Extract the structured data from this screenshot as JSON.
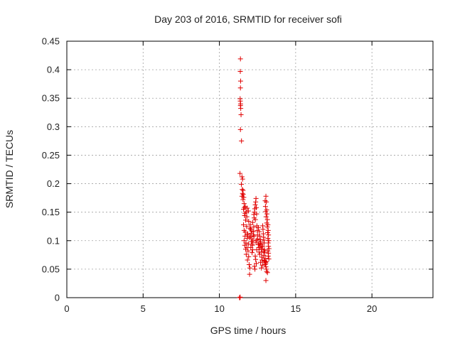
{
  "chart_data": {
    "type": "scatter",
    "title": "Day 203 of 2016, SRMTID for receiver sofi",
    "xlabel": "GPS time / hours",
    "ylabel": "SRMTID / TECUs",
    "xlim": [
      0,
      24
    ],
    "ylim": [
      0,
      0.45
    ],
    "xticks": [
      0,
      5,
      10,
      15,
      20
    ],
    "xtick_labels": [
      "0",
      "5",
      "10",
      "15",
      "20"
    ],
    "yticks": [
      0,
      0.05,
      0.1,
      0.15,
      0.2,
      0.25,
      0.3,
      0.35,
      0.4,
      0.45
    ],
    "ytick_labels": [
      "0",
      "0.05",
      "0.1",
      "0.15",
      "0.2",
      "0.25",
      "0.3",
      "0.35",
      "0.4",
      "0.45"
    ],
    "grid": true,
    "marker": "+",
    "color": "#e00000",
    "series": [
      {
        "name": "SRMTID",
        "points": [
          [
            11.32,
            0.0
          ],
          [
            11.33,
            0.0
          ],
          [
            11.34,
            0.0
          ],
          [
            11.35,
            0.0
          ],
          [
            11.36,
            0.001
          ],
          [
            11.38,
            0.419
          ],
          [
            11.37,
            0.397
          ],
          [
            11.39,
            0.38
          ],
          [
            11.38,
            0.368
          ],
          [
            11.36,
            0.349
          ],
          [
            11.37,
            0.345
          ],
          [
            11.39,
            0.34
          ],
          [
            11.38,
            0.337
          ],
          [
            11.4,
            0.332
          ],
          [
            11.42,
            0.321
          ],
          [
            11.38,
            0.295
          ],
          [
            11.45,
            0.275
          ],
          [
            11.35,
            0.218
          ],
          [
            11.48,
            0.212
          ],
          [
            11.52,
            0.208
          ],
          [
            11.44,
            0.199
          ],
          [
            11.55,
            0.188
          ],
          [
            11.52,
            0.183
          ],
          [
            11.48,
            0.178
          ],
          [
            11.6,
            0.176
          ],
          [
            11.55,
            0.172
          ],
          [
            11.62,
            0.165
          ],
          [
            11.7,
            0.16
          ],
          [
            11.58,
            0.155
          ],
          [
            11.82,
            0.157
          ],
          [
            11.75,
            0.15
          ],
          [
            11.68,
            0.148
          ],
          [
            11.9,
            0.152
          ],
          [
            11.65,
            0.144
          ],
          [
            11.8,
            0.142
          ],
          [
            11.72,
            0.136
          ],
          [
            11.58,
            0.128
          ],
          [
            11.78,
            0.125
          ],
          [
            11.62,
            0.118
          ],
          [
            11.7,
            0.115
          ],
          [
            11.86,
            0.112
          ],
          [
            11.68,
            0.108
          ],
          [
            11.82,
            0.104
          ],
          [
            11.62,
            0.1
          ],
          [
            11.74,
            0.096
          ],
          [
            11.9,
            0.094
          ],
          [
            11.66,
            0.092
          ],
          [
            11.8,
            0.088
          ],
          [
            11.72,
            0.085
          ],
          [
            11.88,
            0.082
          ],
          [
            11.76,
            0.076
          ],
          [
            11.92,
            0.072
          ],
          [
            11.84,
            0.066
          ],
          [
            11.95,
            0.058
          ],
          [
            12.0,
            0.052
          ],
          [
            11.98,
            0.041
          ],
          [
            12.02,
            0.128
          ],
          [
            12.05,
            0.12
          ],
          [
            12.08,
            0.113
          ],
          [
            12.04,
            0.107
          ],
          [
            12.12,
            0.103
          ],
          [
            12.1,
            0.098
          ],
          [
            12.15,
            0.094
          ],
          [
            12.06,
            0.088
          ],
          [
            12.18,
            0.084
          ],
          [
            12.14,
            0.079
          ],
          [
            12.2,
            0.1
          ],
          [
            12.22,
            0.11
          ],
          [
            12.24,
            0.116
          ],
          [
            12.25,
            0.124
          ],
          [
            12.18,
            0.132
          ],
          [
            12.28,
            0.14
          ],
          [
            12.26,
            0.146
          ],
          [
            12.3,
            0.15
          ],
          [
            12.32,
            0.156
          ],
          [
            12.35,
            0.163
          ],
          [
            12.38,
            0.168
          ],
          [
            12.4,
            0.174
          ],
          [
            12.42,
            0.158
          ],
          [
            12.44,
            0.147
          ],
          [
            12.36,
            0.137
          ],
          [
            12.46,
            0.126
          ],
          [
            12.48,
            0.118
          ],
          [
            12.5,
            0.11
          ],
          [
            12.52,
            0.103
          ],
          [
            12.4,
            0.097
          ],
          [
            12.55,
            0.093
          ],
          [
            12.58,
            0.088
          ],
          [
            12.45,
            0.084
          ],
          [
            12.6,
            0.08
          ],
          [
            12.35,
            0.073
          ],
          [
            12.38,
            0.067
          ],
          [
            12.42,
            0.06
          ],
          [
            12.3,
            0.055
          ],
          [
            12.33,
            0.05
          ],
          [
            12.62,
            0.116
          ],
          [
            12.65,
            0.108
          ],
          [
            12.68,
            0.102
          ],
          [
            12.7,
            0.098
          ],
          [
            12.72,
            0.094
          ],
          [
            12.66,
            0.088
          ],
          [
            12.74,
            0.085
          ],
          [
            12.76,
            0.08
          ],
          [
            12.64,
            0.076
          ],
          [
            12.78,
            0.071
          ],
          [
            12.8,
            0.066
          ],
          [
            12.7,
            0.062
          ],
          [
            12.82,
            0.057
          ],
          [
            12.75,
            0.052
          ],
          [
            12.84,
            0.126
          ],
          [
            12.86,
            0.12
          ],
          [
            12.88,
            0.112
          ],
          [
            12.9,
            0.106
          ],
          [
            12.92,
            0.101
          ],
          [
            12.94,
            0.096
          ],
          [
            12.85,
            0.09
          ],
          [
            12.96,
            0.084
          ],
          [
            12.98,
            0.079
          ],
          [
            12.9,
            0.074
          ],
          [
            13.0,
            0.069
          ],
          [
            12.95,
            0.065
          ],
          [
            13.02,
            0.062
          ],
          [
            13.04,
            0.06
          ],
          [
            13.06,
            0.063
          ],
          [
            12.98,
            0.064
          ],
          [
            13.0,
            0.058
          ],
          [
            13.05,
            0.054
          ],
          [
            13.08,
            0.05
          ],
          [
            13.1,
            0.046
          ],
          [
            13.05,
            0.03
          ],
          [
            13.0,
            0.17
          ],
          [
            13.05,
            0.178
          ],
          [
            13.08,
            0.168
          ],
          [
            13.02,
            0.16
          ],
          [
            13.1,
            0.154
          ],
          [
            13.04,
            0.151
          ],
          [
            13.12,
            0.147
          ],
          [
            13.06,
            0.142
          ],
          [
            13.15,
            0.137
          ],
          [
            13.1,
            0.131
          ],
          [
            13.18,
            0.128
          ],
          [
            13.14,
            0.124
          ],
          [
            13.2,
            0.118
          ],
          [
            13.16,
            0.114
          ],
          [
            13.22,
            0.11
          ],
          [
            13.18,
            0.104
          ],
          [
            13.24,
            0.1
          ],
          [
            13.2,
            0.096
          ],
          [
            13.22,
            0.09
          ],
          [
            13.25,
            0.086
          ],
          [
            13.18,
            0.082
          ],
          [
            13.22,
            0.078
          ],
          [
            13.2,
            0.073
          ],
          [
            13.24,
            0.068
          ],
          [
            13.15,
            0.044
          ],
          [
            11.5,
            0.19
          ],
          [
            11.56,
            0.181
          ],
          [
            11.64,
            0.158
          ],
          [
            11.92,
            0.134
          ],
          [
            12.0,
            0.122
          ],
          [
            12.12,
            0.117
          ],
          [
            12.27,
            0.108
          ],
          [
            12.44,
            0.101
          ],
          [
            12.56,
            0.123
          ],
          [
            12.63,
            0.095
          ],
          [
            12.78,
            0.09
          ],
          [
            12.92,
            0.082
          ],
          [
            11.84,
            0.11
          ],
          [
            11.96,
            0.106
          ],
          [
            12.16,
            0.092
          ]
        ]
      }
    ]
  }
}
